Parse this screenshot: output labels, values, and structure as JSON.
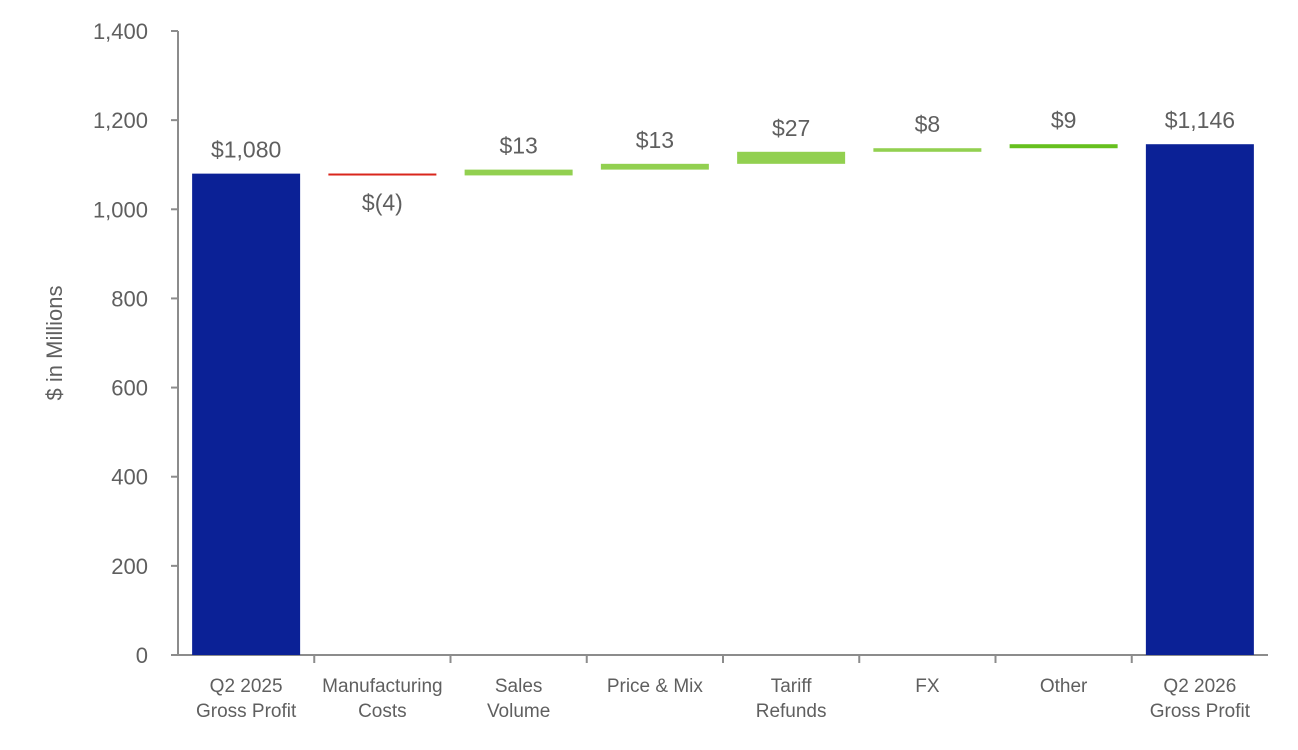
{
  "chart_data": {
    "type": "bar",
    "subtype": "waterfall",
    "title": "",
    "ylabel": "$ in Millions",
    "xlabel": "",
    "ylim": [
      0,
      1400
    ],
    "yticks": [
      0,
      200,
      400,
      600,
      800,
      1000,
      1200,
      1400
    ],
    "ytick_labels": [
      "0",
      "200",
      "400",
      "600",
      "800",
      "1,000",
      "1,200",
      "1,400"
    ],
    "grid": false,
    "legend": "none",
    "colors": {
      "total": "#0b2196",
      "negative": "#d9261c",
      "positive": "#92d050",
      "positive_dark": "#66c01e",
      "axis": "#8c8c8c",
      "text": "#5f5f5f"
    },
    "bars": [
      {
        "category": [
          "Q2 2025",
          "Gross Profit"
        ],
        "kind": "total",
        "start": 0,
        "end": 1080,
        "label": "$1,080",
        "color": "#0b2196"
      },
      {
        "category": [
          "Manufacturing",
          "Costs"
        ],
        "kind": "delta",
        "start": 1080,
        "end": 1076,
        "label": "$(4)",
        "color": "#d9261c"
      },
      {
        "category": [
          "Sales",
          "Volume"
        ],
        "kind": "delta",
        "start": 1076,
        "end": 1089,
        "label": "$13",
        "color": "#92d050"
      },
      {
        "category": [
          "Price & Mix"
        ],
        "kind": "delta",
        "start": 1089,
        "end": 1102,
        "label": "$13",
        "color": "#92d050"
      },
      {
        "category": [
          "Tariff",
          "Refunds"
        ],
        "kind": "delta",
        "start": 1102,
        "end": 1129,
        "label": "$27",
        "color": "#92d050"
      },
      {
        "category": [
          "FX"
        ],
        "kind": "delta",
        "start": 1129,
        "end": 1137,
        "label": "$8",
        "color": "#92d050"
      },
      {
        "category": [
          "Other"
        ],
        "kind": "delta",
        "start": 1137,
        "end": 1146,
        "label": "$9",
        "color": "#66c01e"
      },
      {
        "category": [
          "Q2 2026",
          "Gross Profit"
        ],
        "kind": "total",
        "start": 0,
        "end": 1146,
        "label": "$1,146",
        "color": "#0b2196"
      }
    ]
  }
}
